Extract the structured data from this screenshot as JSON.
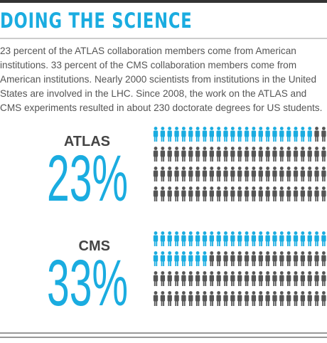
{
  "title": "DOING THE SCIENCE",
  "body": "23 percent of the ATLAS collaboration members come from American institutions. 33 percent of the CMS collaboration members come from American institutions. Nearly 2000 scientists from institutions in the United States are involved in the LHC. Since 2008, the work on the ATLAS and CMS experiments resulted in about 230 doctorate degrees for US students.",
  "sections": [
    {
      "label": "ATLAS",
      "value": 23,
      "value_label": "23%"
    },
    {
      "label": "CMS",
      "value": 33,
      "value_label": "33%"
    }
  ],
  "colors": {
    "highlight": "#1aace0",
    "rest": "#555555"
  }
}
